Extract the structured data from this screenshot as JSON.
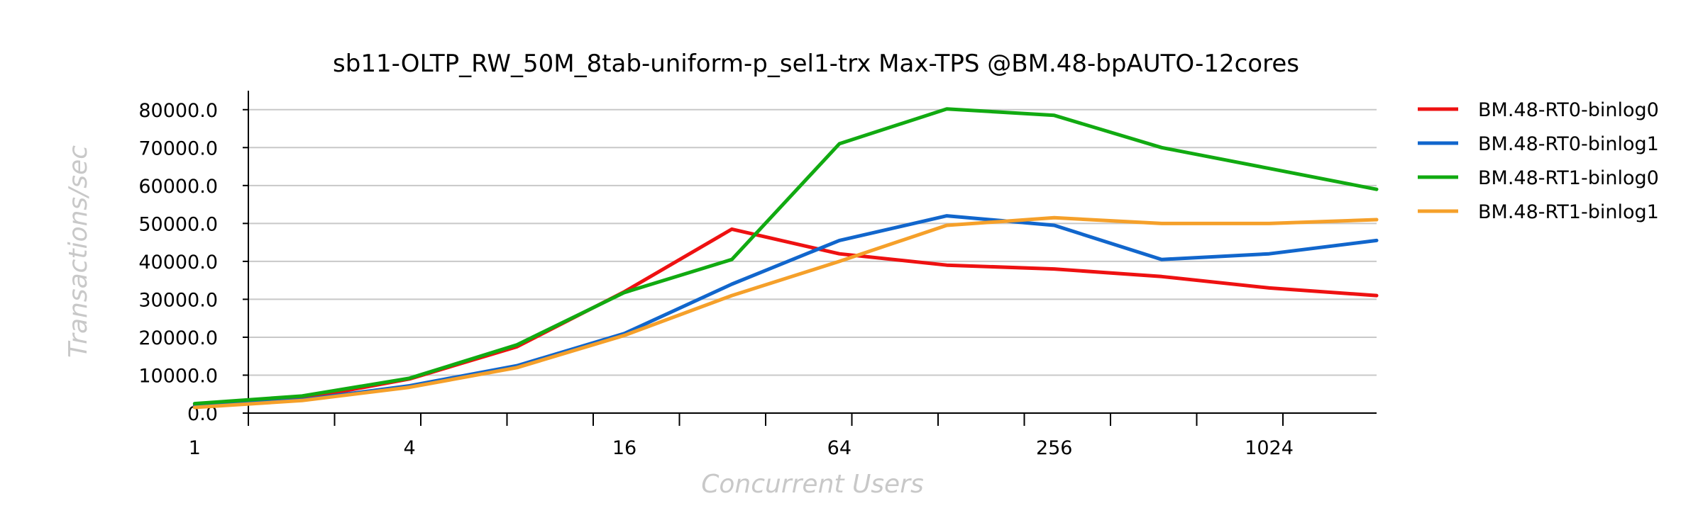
{
  "chart_data": {
    "type": "line",
    "title": "sb11-OLTP_RW_50M_8tab-uniform-p_sel1-trx Max-TPS @BM.48-bpAUTO-12cores",
    "xlabel": "Concurrent Users",
    "ylabel": "Transactions/sec",
    "x": [
      1,
      2,
      4,
      8,
      16,
      32,
      64,
      128,
      256,
      512,
      1024,
      2048
    ],
    "x_scale": "log2",
    "x_tick_labels": [
      "1",
      "4",
      "16",
      "64",
      "256",
      "1024"
    ],
    "ylim": [
      0,
      85000
    ],
    "y_ticks": [
      0,
      10000,
      20000,
      30000,
      40000,
      50000,
      60000,
      70000,
      80000
    ],
    "y_tick_labels": [
      "0.0",
      "10000.0",
      "20000.0",
      "30000.0",
      "40000.0",
      "50000.0",
      "60000.0",
      "70000.0",
      "80000.0"
    ],
    "grid": true,
    "legend_position": "right",
    "series": [
      {
        "name": "BM.48-RT0-binlog0",
        "color": "#ee1111",
        "values": [
          2000,
          3800,
          9000,
          17500,
          32000,
          48500,
          42000,
          39000,
          38000,
          36000,
          33000,
          31000
        ]
      },
      {
        "name": "BM.48-RT0-binlog1",
        "color": "#1166cc",
        "values": [
          1800,
          3500,
          7200,
          12500,
          21000,
          34000,
          45500,
          52000,
          49500,
          40500,
          42000,
          45500
        ]
      },
      {
        "name": "BM.48-RT1-binlog0",
        "color": "#11aa11",
        "values": [
          2500,
          4500,
          9200,
          18000,
          31800,
          40500,
          71000,
          80200,
          78500,
          70000,
          64500,
          59000
        ]
      },
      {
        "name": "BM.48-RT1-binlog1",
        "color": "#f5a02a",
        "values": [
          1500,
          3300,
          6800,
          12000,
          20500,
          31000,
          40000,
          49500,
          51500,
          50000,
          50000,
          51000
        ]
      }
    ]
  }
}
